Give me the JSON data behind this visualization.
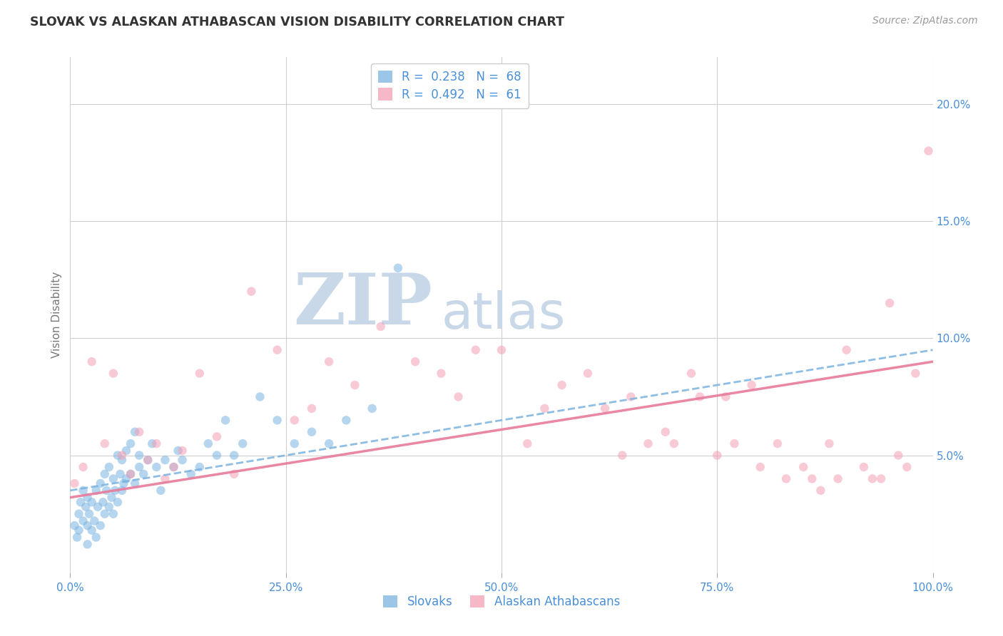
{
  "title": "SLOVAK VS ALASKAN ATHABASCAN VISION DISABILITY CORRELATION CHART",
  "source": "Source: ZipAtlas.com",
  "ylabel": "Vision Disability",
  "legend1_label": "Slovaks",
  "legend2_label": "Alaskan Athabascans",
  "R1": 0.238,
  "N1": 68,
  "R2": 0.492,
  "N2": 61,
  "color1": "#7ab3e0",
  "color2": "#f4a0b5",
  "line1_color": "#7ab3e0",
  "line2_color": "#e87a9a",
  "xlim": [
    0,
    100
  ],
  "ylim": [
    0,
    22
  ],
  "xticks": [
    0,
    25,
    50,
    75,
    100
  ],
  "xtick_labels": [
    "0.0%",
    "25.0%",
    "50.0%",
    "75.0%",
    "100.0%"
  ],
  "yticks_right": [
    5,
    10,
    15,
    20
  ],
  "ytick_labels_right": [
    "5.0%",
    "10.0%",
    "15.0%",
    "20.0%"
  ],
  "background_color": "#ffffff",
  "grid_color": "#d0d0d0",
  "title_color": "#333333",
  "axis_label_color": "#777777",
  "tick_label_color": "#4a90d9",
  "slovaks_x": [
    0.5,
    0.8,
    1.0,
    1.0,
    1.2,
    1.5,
    1.5,
    1.8,
    2.0,
    2.0,
    2.0,
    2.2,
    2.5,
    2.5,
    2.8,
    3.0,
    3.0,
    3.2,
    3.5,
    3.5,
    3.8,
    4.0,
    4.0,
    4.2,
    4.5,
    4.5,
    4.8,
    5.0,
    5.0,
    5.2,
    5.5,
    5.5,
    5.8,
    6.0,
    6.0,
    6.2,
    6.5,
    6.5,
    7.0,
    7.0,
    7.5,
    7.5,
    8.0,
    8.0,
    8.5,
    9.0,
    9.5,
    10.0,
    10.5,
    11.0,
    12.0,
    12.5,
    13.0,
    14.0,
    15.0,
    16.0,
    17.0,
    18.0,
    19.0,
    20.0,
    22.0,
    24.0,
    26.0,
    28.0,
    30.0,
    32.0,
    35.0,
    38.0
  ],
  "slovaks_y": [
    2.0,
    1.5,
    2.5,
    1.8,
    3.0,
    2.2,
    3.5,
    2.8,
    1.2,
    2.0,
    3.2,
    2.5,
    1.8,
    3.0,
    2.2,
    1.5,
    3.5,
    2.8,
    2.0,
    3.8,
    3.0,
    2.5,
    4.2,
    3.5,
    2.8,
    4.5,
    3.2,
    2.5,
    4.0,
    3.5,
    3.0,
    5.0,
    4.2,
    3.5,
    4.8,
    3.8,
    4.0,
    5.2,
    5.5,
    4.2,
    3.8,
    6.0,
    5.0,
    4.5,
    4.2,
    4.8,
    5.5,
    4.5,
    3.5,
    4.8,
    4.5,
    5.2,
    4.8,
    4.2,
    4.5,
    5.5,
    5.0,
    6.5,
    5.0,
    5.5,
    7.5,
    6.5,
    5.5,
    6.0,
    5.5,
    6.5,
    7.0,
    13.0
  ],
  "athabascan_x": [
    0.5,
    1.5,
    2.5,
    4.0,
    5.0,
    6.0,
    7.0,
    8.0,
    9.0,
    10.0,
    11.0,
    12.0,
    13.0,
    15.0,
    17.0,
    19.0,
    21.0,
    24.0,
    26.0,
    28.0,
    30.0,
    33.0,
    36.0,
    40.0,
    43.0,
    45.0,
    47.0,
    50.0,
    53.0,
    55.0,
    57.0,
    60.0,
    62.0,
    64.0,
    65.0,
    67.0,
    69.0,
    70.0,
    72.0,
    73.0,
    75.0,
    76.0,
    77.0,
    79.0,
    80.0,
    82.0,
    83.0,
    85.0,
    86.0,
    87.0,
    88.0,
    89.0,
    90.0,
    92.0,
    93.0,
    94.0,
    95.0,
    96.0,
    97.0,
    98.0,
    99.5
  ],
  "athabascan_y": [
    3.8,
    4.5,
    9.0,
    5.5,
    8.5,
    5.0,
    4.2,
    6.0,
    4.8,
    5.5,
    4.0,
    4.5,
    5.2,
    8.5,
    5.8,
    4.2,
    12.0,
    9.5,
    6.5,
    7.0,
    9.0,
    8.0,
    10.5,
    9.0,
    8.5,
    7.5,
    9.5,
    9.5,
    5.5,
    7.0,
    8.0,
    8.5,
    7.0,
    5.0,
    7.5,
    5.5,
    6.0,
    5.5,
    8.5,
    7.5,
    5.0,
    7.5,
    5.5,
    8.0,
    4.5,
    5.5,
    4.0,
    4.5,
    4.0,
    3.5,
    5.5,
    4.0,
    9.5,
    4.5,
    4.0,
    4.0,
    11.5,
    5.0,
    4.5,
    8.5,
    18.0
  ],
  "watermark_zip": "ZIP",
  "watermark_atlas": "atlas",
  "watermark_color": "#c8d8e8",
  "marker_size": 80,
  "marker_alpha": 0.55
}
